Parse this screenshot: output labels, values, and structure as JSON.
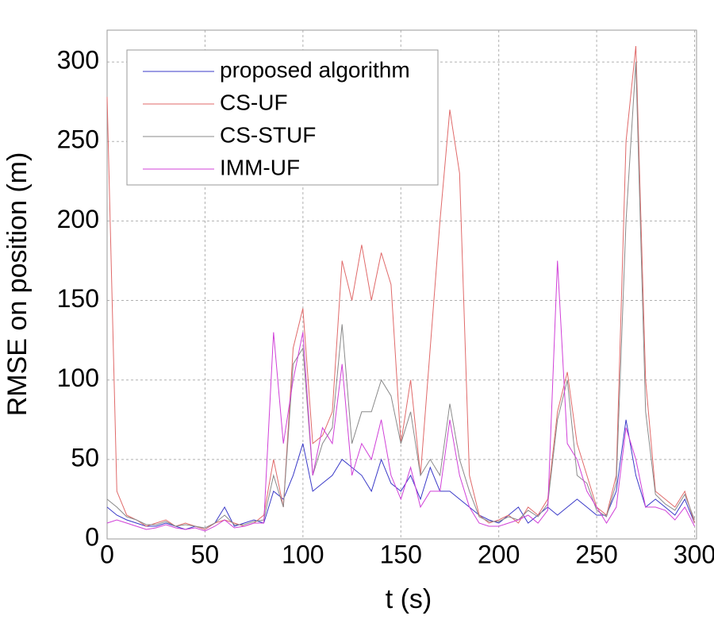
{
  "chart_data": {
    "type": "line",
    "x_label": "t (s)",
    "y_label": "RMSE on position (m)",
    "x": [
      0,
      5,
      10,
      15,
      20,
      25,
      30,
      35,
      40,
      45,
      50,
      55,
      60,
      65,
      70,
      75,
      80,
      85,
      90,
      95,
      100,
      105,
      110,
      115,
      120,
      125,
      130,
      135,
      140,
      145,
      150,
      155,
      160,
      165,
      170,
      175,
      180,
      185,
      190,
      195,
      200,
      205,
      210,
      215,
      220,
      225,
      230,
      235,
      240,
      245,
      250,
      255,
      260,
      265,
      270,
      275,
      280,
      285,
      290,
      295,
      300
    ],
    "series": [
      {
        "name": "proposed algorithm",
        "color": "#3a3ac8",
        "values": [
          20,
          15,
          12,
          10,
          8,
          8,
          10,
          8,
          6,
          8,
          6,
          10,
          20,
          8,
          10,
          12,
          10,
          30,
          25,
          40,
          60,
          30,
          35,
          40,
          50,
          45,
          40,
          30,
          50,
          35,
          30,
          40,
          25,
          45,
          30,
          30,
          25,
          20,
          15,
          12,
          10,
          15,
          20,
          10,
          15,
          20,
          15,
          20,
          25,
          20,
          15,
          15,
          30,
          75,
          40,
          20,
          25,
          20,
          15,
          25,
          10
        ]
      },
      {
        "name": "CS-UF",
        "color": "#e06a6a",
        "values": [
          278,
          30,
          15,
          12,
          8,
          10,
          12,
          8,
          10,
          8,
          6,
          10,
          12,
          10,
          8,
          10,
          15,
          50,
          20,
          120,
          145,
          60,
          65,
          80,
          175,
          150,
          185,
          150,
          180,
          160,
          60,
          100,
          40,
          120,
          200,
          270,
          230,
          40,
          15,
          10,
          12,
          15,
          10,
          20,
          15,
          25,
          80,
          105,
          60,
          40,
          20,
          15,
          40,
          250,
          310,
          100,
          30,
          25,
          20,
          30,
          10
        ]
      },
      {
        "name": "CS-STUF",
        "color": "#8a8a8a",
        "values": [
          25,
          20,
          14,
          12,
          9,
          9,
          11,
          8,
          9,
          8,
          7,
          10,
          15,
          9,
          9,
          11,
          12,
          40,
          20,
          110,
          120,
          40,
          60,
          70,
          135,
          60,
          80,
          80,
          100,
          90,
          60,
          80,
          40,
          50,
          40,
          85,
          50,
          30,
          14,
          11,
          11,
          14,
          12,
          18,
          14,
          22,
          75,
          100,
          40,
          35,
          18,
          14,
          35,
          200,
          300,
          80,
          28,
          22,
          18,
          28,
          12
        ]
      },
      {
        "name": "IMM-UF",
        "color": "#d040d8",
        "values": [
          10,
          12,
          10,
          8,
          6,
          7,
          9,
          7,
          6,
          7,
          5,
          8,
          12,
          7,
          8,
          10,
          10,
          130,
          60,
          100,
          130,
          40,
          70,
          60,
          110,
          40,
          60,
          50,
          75,
          40,
          25,
          45,
          20,
          30,
          30,
          75,
          40,
          20,
          10,
          8,
          8,
          10,
          12,
          15,
          10,
          18,
          175,
          60,
          50,
          30,
          20,
          10,
          20,
          70,
          50,
          20,
          20,
          18,
          12,
          20,
          8
        ]
      }
    ],
    "xlim": [
      0,
      301
    ],
    "xticks": [
      0,
      50,
      100,
      150,
      200,
      250,
      300
    ],
    "ylim": [
      0,
      320
    ],
    "yticks": [
      0,
      50,
      100,
      150,
      200,
      250,
      300
    ],
    "grid": true,
    "legend": "upper left"
  }
}
